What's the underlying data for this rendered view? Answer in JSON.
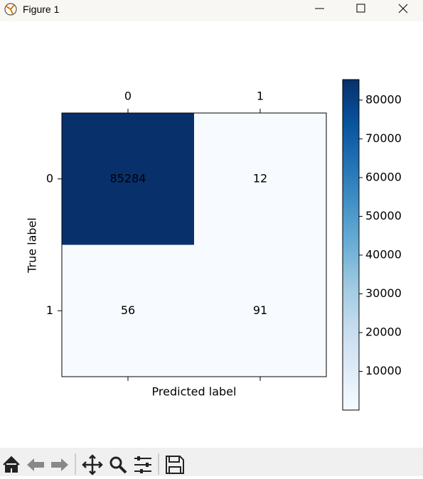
{
  "window": {
    "title": "Figure 1"
  },
  "chart_data": {
    "type": "heatmap",
    "x_categories": [
      "0",
      "1"
    ],
    "y_categories": [
      "0",
      "1"
    ],
    "values": [
      [
        85284,
        12
      ],
      [
        56,
        91
      ]
    ],
    "xlabel": "Predicted label",
    "ylabel": "True label",
    "colormap": [
      "#f7fbff",
      "#deebf7",
      "#c6dbef",
      "#9ecae1",
      "#6baed6",
      "#4292c6",
      "#2171b5",
      "#08519c",
      "#08306b"
    ],
    "clim": [
      12,
      85284
    ],
    "cticks": [
      10000,
      20000,
      30000,
      40000,
      50000,
      60000,
      70000,
      80000
    ]
  }
}
